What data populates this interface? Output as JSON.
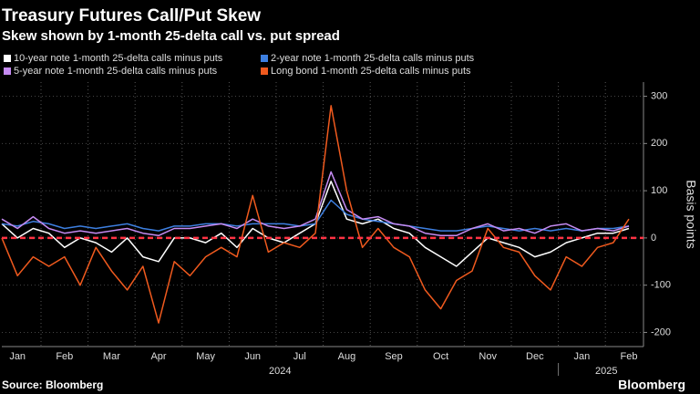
{
  "chart_data": {
    "type": "line",
    "title": "Treasury Futures Call/Put Skew",
    "subtitle": "Skew shown by 1-month 25-delta call vs. put spread",
    "y_axis_label": "Basis points",
    "source": "Source: Bloomberg",
    "brand": "Bloomberg",
    "years": [
      "2024",
      "2025"
    ],
    "categories": [
      null,
      "Jan",
      null,
      null,
      "Feb",
      null,
      null,
      "Mar",
      null,
      null,
      "Apr",
      null,
      null,
      "May",
      null,
      null,
      "Jun",
      null,
      null,
      "Jul",
      null,
      null,
      "Aug",
      null,
      null,
      "Sep",
      null,
      null,
      "Oct",
      null,
      null,
      "Nov",
      null,
      null,
      "Dec",
      null,
      null,
      "Jan",
      null,
      null,
      "Feb"
    ],
    "series": [
      {
        "name": "10-year note 1-month 25-delta calls minus puts",
        "color": "#ffffff",
        "values": [
          30,
          0,
          20,
          10,
          -20,
          0,
          -10,
          -30,
          0,
          -40,
          -50,
          0,
          0,
          -10,
          10,
          -20,
          20,
          0,
          -10,
          10,
          30,
          120,
          40,
          30,
          40,
          20,
          10,
          -20,
          -40,
          -60,
          -30,
          0,
          -10,
          -20,
          -40,
          -30,
          -10,
          0,
          10,
          10,
          20
        ]
      },
      {
        "name": "2-year note 1-month 25-delta calls minus puts",
        "color": "#3d7fe0",
        "values": [
          30,
          25,
          35,
          30,
          20,
          25,
          20,
          25,
          30,
          20,
          15,
          25,
          25,
          30,
          30,
          25,
          30,
          30,
          30,
          25,
          30,
          80,
          50,
          40,
          35,
          30,
          25,
          20,
          15,
          15,
          20,
          25,
          20,
          15,
          20,
          15,
          20,
          15,
          20,
          20,
          25
        ]
      },
      {
        "name": "5-year note 1-month 25-delta calls minus puts",
        "color": "#c58bf2",
        "values": [
          40,
          20,
          45,
          20,
          10,
          15,
          10,
          15,
          20,
          10,
          5,
          20,
          20,
          25,
          30,
          20,
          40,
          25,
          20,
          25,
          40,
          140,
          60,
          40,
          45,
          30,
          25,
          10,
          5,
          5,
          20,
          30,
          15,
          20,
          10,
          25,
          30,
          15,
          20,
          15,
          25
        ]
      },
      {
        "name": "Long bond 1-month 25-delta calls minus puts",
        "color": "#f05a1e",
        "values": [
          0,
          -80,
          -40,
          -60,
          -40,
          -100,
          -20,
          -70,
          -110,
          -60,
          -180,
          -50,
          -80,
          -40,
          -20,
          -40,
          90,
          -30,
          -10,
          -20,
          10,
          280,
          100,
          -20,
          20,
          -20,
          -40,
          -110,
          -150,
          -90,
          -70,
          20,
          -20,
          -30,
          -80,
          -110,
          -40,
          -60,
          -20,
          -10,
          40
        ]
      }
    ],
    "reference_line": 0,
    "reference_color": "#ff3344",
    "ylim": [
      -230,
      330
    ],
    "yticks": [
      -200,
      -100,
      0,
      100,
      200,
      300
    ],
    "grid": true
  }
}
